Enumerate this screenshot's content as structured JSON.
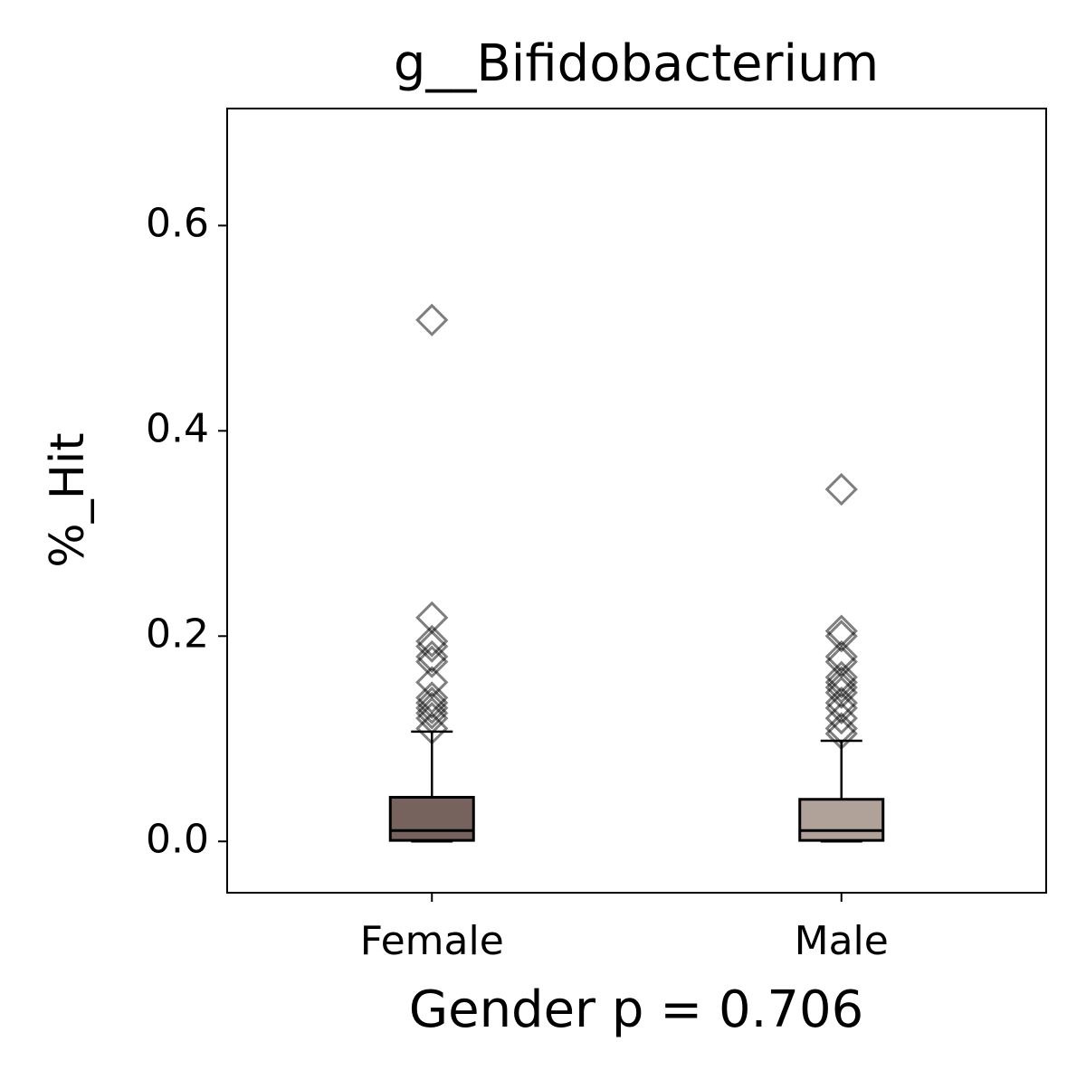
{
  "chart_data": {
    "type": "box",
    "title": "g__Bifidobacterium",
    "x_label": "Gender p = 0.706",
    "y_label": "%_Hit",
    "categories": [
      "Female",
      "Male"
    ],
    "boxes": [
      {
        "whislo": 0,
        "q1": 0.001,
        "med": 0.0106,
        "q3": 0.043,
        "whishi": 0.107,
        "color": "#76635e",
        "fliers": [
          0.508,
          0.218,
          0.195,
          0.19,
          0.18,
          0.175,
          0.155,
          0.14,
          0.135,
          0.13,
          0.125,
          0.12,
          0.11
        ]
      },
      {
        "whislo": 0,
        "q1": 0.001,
        "med": 0.0106,
        "q3": 0.041,
        "whishi": 0.098,
        "color": "#b0a199",
        "fliers": [
          0.343,
          0.205,
          0.2,
          0.18,
          0.175,
          0.16,
          0.155,
          0.15,
          0.145,
          0.135,
          0.13,
          0.12,
          0.11,
          0.105
        ]
      }
    ],
    "ylim": [
      -0.05,
      0.714
    ],
    "yticks": [
      {
        "value": 0,
        "label": "0.0"
      },
      0.2,
      0.4,
      0.6
    ]
  }
}
